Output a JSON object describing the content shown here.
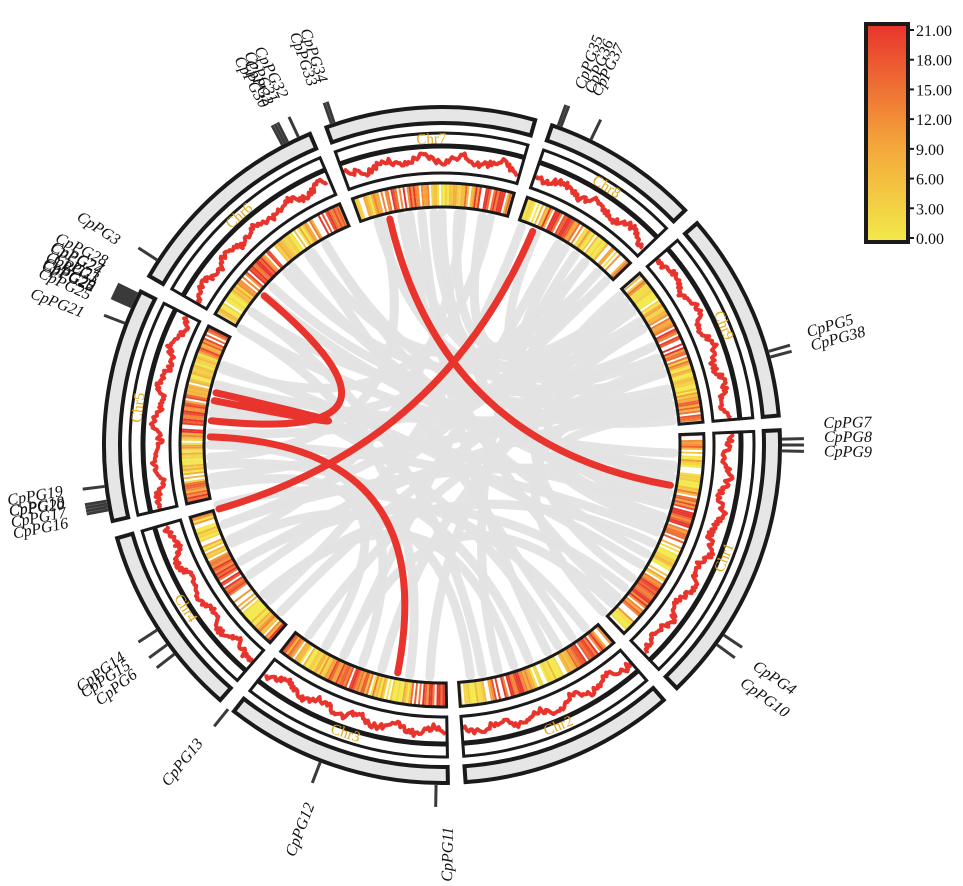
{
  "figure": {
    "type": "circos-synteny",
    "colors": {
      "ideogram_fill": "#e6e6e6",
      "ideogram_stroke": "#1a1a1a",
      "line_track": "#e8342c",
      "gray_link": "#e3e3e3",
      "red_link": "#e8342c",
      "chr_label": "#e6a817",
      "heat_low": "#f2ea4a",
      "heat_mid": "#f4a53a",
      "heat_high": "#e8342c"
    }
  },
  "legend": {
    "title": "",
    "ticks": [
      "21.00",
      "18.00",
      "15.00",
      "12.00",
      "9.00",
      "6.00",
      "3.00",
      "0.00"
    ],
    "min": 0,
    "max": 21
  },
  "chromosomes": [
    {
      "name": "Chr1",
      "start_deg": 87.5,
      "end_deg": 136
    },
    {
      "name": "Chr2",
      "start_deg": 139,
      "end_deg": 176
    },
    {
      "name": "Chr3",
      "start_deg": 179,
      "end_deg": 218
    },
    {
      "name": "Chr4",
      "start_deg": 221,
      "end_deg": 254
    },
    {
      "name": "Chr5",
      "start_deg": 257,
      "end_deg": 297
    },
    {
      "name": "Chr6",
      "start_deg": 300,
      "end_deg": 337
    },
    {
      "name": "Chr7",
      "start_deg": 340,
      "end_deg": 376
    },
    {
      "name": "Chr8",
      "start_deg": 379,
      "end_deg": 406
    },
    {
      "name": "Chr9",
      "start_deg": 409,
      "end_deg": 445
    }
  ],
  "genes": [
    {
      "name": "CpPG7",
      "chr": "Chr1",
      "angle": 89,
      "side": "right"
    },
    {
      "name": "CpPG8",
      "chr": "Chr1",
      "angle": 90,
      "side": "right"
    },
    {
      "name": "CpPG9",
      "chr": "Chr1",
      "angle": 91,
      "side": "right"
    },
    {
      "name": "CpPG4",
      "chr": "Chr1",
      "angle": 124,
      "side": "right"
    },
    {
      "name": "CpPG10",
      "chr": "Chr1",
      "angle": 126,
      "side": "right"
    },
    {
      "name": "CpPG11",
      "chr": "Chr3",
      "angle": 181,
      "side": "bottom"
    },
    {
      "name": "CpPG12",
      "chr": "Chr3",
      "angle": 201,
      "side": "bottom"
    },
    {
      "name": "CpPG13",
      "chr": "Chr4",
      "angle": 219,
      "side": "left"
    },
    {
      "name": "CpPG6",
      "chr": "Chr4",
      "angle": 232,
      "side": "left"
    },
    {
      "name": "CpPG14",
      "chr": "Chr4",
      "angle": 234,
      "side": "left"
    },
    {
      "name": "CpPG15",
      "chr": "Chr4",
      "angle": 237,
      "side": "left"
    },
    {
      "name": "CpPG16",
      "chr": "Chr5",
      "angle": 259,
      "side": "left"
    },
    {
      "name": "CpPG17",
      "chr": "Chr5",
      "angle": 259.5,
      "side": "left"
    },
    {
      "name": "CpPG18",
      "chr": "Chr5",
      "angle": 260,
      "side": "left"
    },
    {
      "name": "CpPG19",
      "chr": "Chr5",
      "angle": 260.5,
      "side": "left"
    },
    {
      "name": "CpPG20",
      "chr": "Chr5",
      "angle": 263,
      "side": "left"
    },
    {
      "name": "CpPG21",
      "chr": "Chr5",
      "angle": 291,
      "side": "left"
    },
    {
      "name": "CpPG22",
      "chr": "Chr5",
      "angle": 294,
      "side": "left"
    },
    {
      "name": "CpPG23",
      "chr": "Chr5",
      "angle": 294.3,
      "side": "left"
    },
    {
      "name": "CpPG24",
      "chr": "Chr5",
      "angle": 294.6,
      "side": "left"
    },
    {
      "name": "CpPG25",
      "chr": "Chr5",
      "angle": 294.9,
      "side": "left"
    },
    {
      "name": "CpPG26",
      "chr": "Chr5",
      "angle": 295.2,
      "side": "left"
    },
    {
      "name": "CpPG1",
      "chr": "Chr5",
      "angle": 295.5,
      "side": "left"
    },
    {
      "name": "CpPG27",
      "chr": "Chr5",
      "angle": 295.8,
      "side": "left"
    },
    {
      "name": "CpPG28",
      "chr": "Chr5",
      "angle": 296.1,
      "side": "left"
    },
    {
      "name": "CpPG29",
      "chr": "Chr5",
      "angle": 296.4,
      "side": "left"
    },
    {
      "name": "CpPG3",
      "chr": "Chr6",
      "angle": 303,
      "side": "left"
    },
    {
      "name": "CpPG30",
      "chr": "Chr6",
      "angle": 332,
      "side": "left"
    },
    {
      "name": "CpPG31",
      "chr": "Chr6",
      "angle": 332.5,
      "side": "left"
    },
    {
      "name": "CpPG32",
      "chr": "Chr6",
      "angle": 333,
      "side": "left"
    },
    {
      "name": "CpPG2",
      "chr": "Chr6",
      "angle": 335,
      "side": "left"
    },
    {
      "name": "CpPG33",
      "chr": "Chr7",
      "angle": 341,
      "side": "left"
    },
    {
      "name": "CpPG34",
      "chr": "Chr7",
      "angle": 341.5,
      "side": "left"
    },
    {
      "name": "CpPG35",
      "chr": "Chr8",
      "angle": 380,
      "side": "right"
    },
    {
      "name": "CpPG36",
      "chr": "Chr8",
      "angle": 380.5,
      "side": "right"
    },
    {
      "name": "CpPG37",
      "chr": "Chr8",
      "angle": 386,
      "side": "right"
    },
    {
      "name": "CpPG5",
      "chr": "Chr9",
      "angle": 434,
      "side": "right"
    },
    {
      "name": "CpPG38",
      "chr": "Chr9",
      "angle": 435,
      "side": "right"
    }
  ],
  "red_links": [
    {
      "from": 100,
      "to": 347
    },
    {
      "from": 191,
      "to": 272
    },
    {
      "from": 283,
      "to": 281
    },
    {
      "from": 254,
      "to": 383
    },
    {
      "from": 310,
      "to": 276
    }
  ],
  "gray_links": [
    [
      92,
      300
    ],
    [
      95,
      310
    ],
    [
      98,
      250
    ],
    [
      102,
      320
    ],
    [
      105,
      280
    ],
    [
      108,
      360
    ],
    [
      112,
      270
    ],
    [
      115,
      230
    ],
    [
      118,
      330
    ],
    [
      121,
      290
    ],
    [
      128,
      240
    ],
    [
      131,
      350
    ],
    [
      133,
      205
    ],
    [
      142,
      255
    ],
    [
      146,
      325
    ],
    [
      150,
      285
    ],
    [
      153,
      355
    ],
    [
      158,
      265
    ],
    [
      162,
      230
    ],
    [
      166,
      395
    ],
    [
      170,
      305
    ],
    [
      173,
      245
    ],
    [
      183,
      415
    ],
    [
      188,
      300
    ],
    [
      195,
      425
    ],
    [
      200,
      270
    ],
    [
      205,
      390
    ],
    [
      210,
      260
    ],
    [
      215,
      430
    ],
    [
      224,
      420
    ],
    [
      228,
      380
    ],
    [
      236,
      405
    ],
    [
      240,
      440
    ],
    [
      246,
      365
    ],
    [
      250,
      412
    ],
    [
      262,
      438
    ],
    [
      267,
      345
    ],
    [
      273,
      418
    ],
    [
      278,
      398
    ],
    [
      285,
      440
    ],
    [
      289,
      372
    ],
    [
      305,
      428
    ],
    [
      313,
      436
    ],
    [
      318,
      415
    ],
    [
      326,
      402
    ],
    [
      330,
      444
    ],
    [
      344,
      432
    ],
    [
      352,
      420
    ],
    [
      358,
      440
    ],
    [
      364,
      412
    ],
    [
      370,
      405
    ],
    [
      384,
      438
    ],
    [
      392,
      425
    ],
    [
      398,
      442
    ],
    [
      402,
      414
    ],
    [
      96,
      438
    ],
    [
      104,
      420
    ],
    [
      110,
      442
    ],
    [
      125,
      410
    ],
    [
      136,
      432
    ]
  ]
}
